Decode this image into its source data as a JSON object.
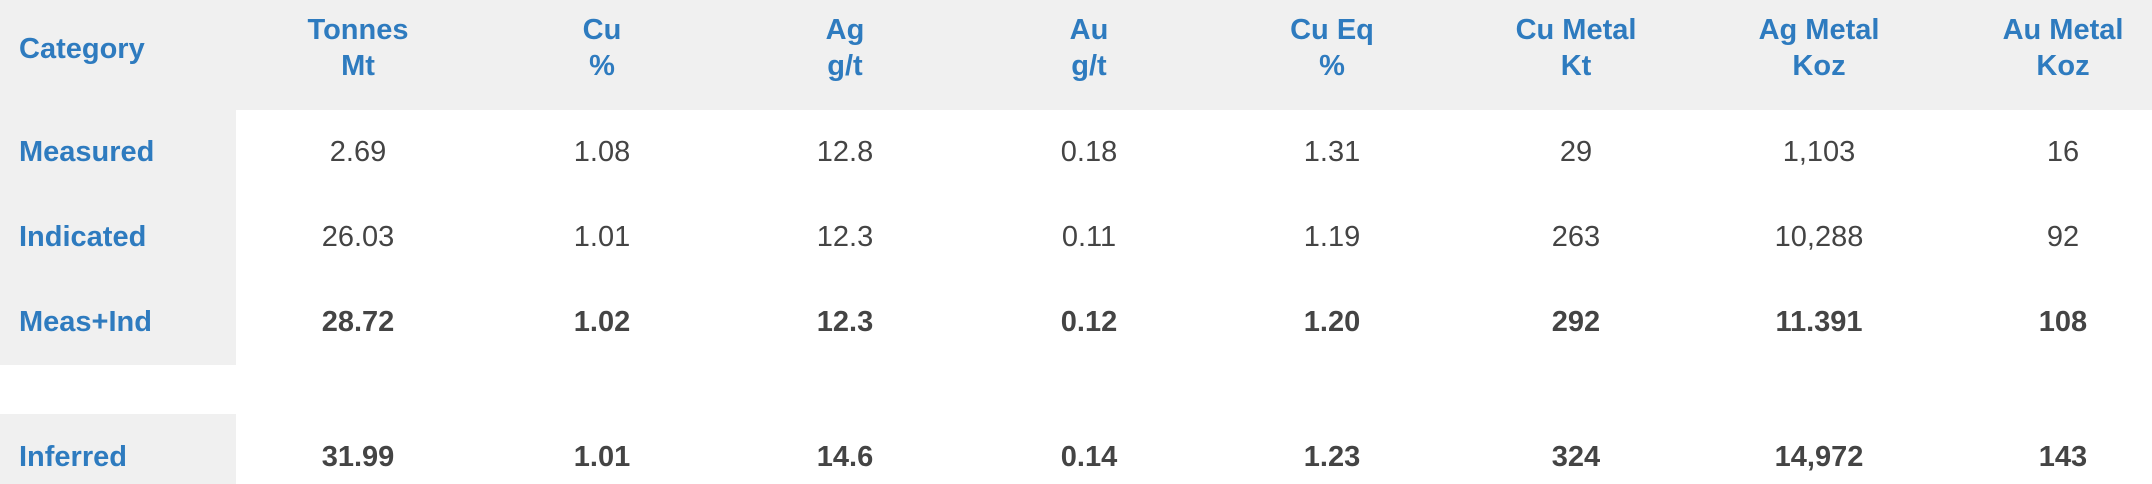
{
  "table": {
    "header": [
      [
        "Category"
      ],
      [
        "Tonnes",
        "Mt"
      ],
      [
        "Cu",
        "%"
      ],
      [
        "Ag",
        "g/t"
      ],
      [
        "Au",
        "g/t"
      ],
      [
        "Cu Eq",
        "%"
      ],
      [
        "Cu Metal",
        "Kt"
      ],
      [
        "Ag Metal",
        "Koz"
      ],
      [
        "Au Metal",
        "Koz"
      ]
    ],
    "rows": [
      {
        "label": "Measured",
        "cells": [
          "2.69",
          "1.08",
          "12.8",
          "0.18",
          "1.31",
          "29",
          "1,103",
          "16"
        ],
        "bold": false
      },
      {
        "label": "Indicated",
        "cells": [
          "26.03",
          "1.01",
          "12.3",
          "0.11",
          "1.19",
          "263",
          "10,288",
          "92"
        ],
        "bold": false
      },
      {
        "label": "Meas+Ind",
        "cells": [
          "28.72",
          "1.02",
          "12.3",
          "0.12",
          "1.20",
          "292",
          "11.391",
          "108"
        ],
        "bold": true
      },
      {
        "label": "Inferred",
        "cells": [
          "31.99",
          "1.01",
          "14.6",
          "0.14",
          "1.23",
          "324",
          "14,972",
          "143"
        ],
        "bold": true
      }
    ]
  }
}
